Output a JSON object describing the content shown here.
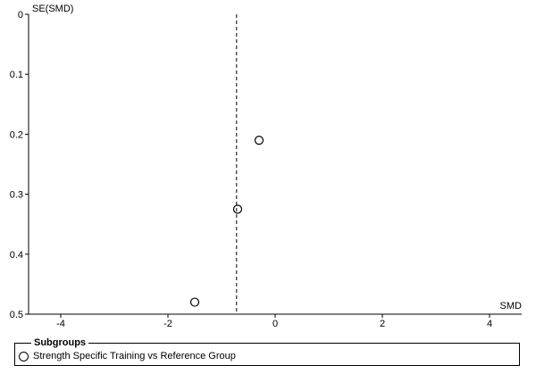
{
  "chart_data": {
    "type": "scatter",
    "title": "",
    "xlabel": "SMD",
    "ylabel": "SE(SMD)",
    "xlim": [
      -4.6,
      4.6
    ],
    "ylim": [
      0,
      0.5
    ],
    "y_inverted": true,
    "xticks": [
      -4,
      -2,
      0,
      2,
      4
    ],
    "xtick_labels": [
      "-4",
      "-2",
      "0",
      "2",
      "4"
    ],
    "yticks": [
      0,
      0.1,
      0.2,
      0.3,
      0.4,
      0.5
    ],
    "ytick_labels": [
      "0",
      "0.1",
      "0.2",
      "0.3",
      "0.4",
      "0.5"
    ],
    "pooled_estimate": -0.72,
    "grid": false,
    "legend_position": "bottom",
    "series": [
      {
        "name": "Strength Specific Training vs Reference Group",
        "marker": "open-circle",
        "points": [
          {
            "x": -0.3,
            "y": 0.21
          },
          {
            "x": -0.7,
            "y": 0.325
          },
          {
            "x": -1.5,
            "y": 0.48
          }
        ]
      }
    ]
  },
  "legend": {
    "title": "Subgroups",
    "items": [
      {
        "label": "Strength Specific Training vs Reference Group"
      }
    ]
  }
}
